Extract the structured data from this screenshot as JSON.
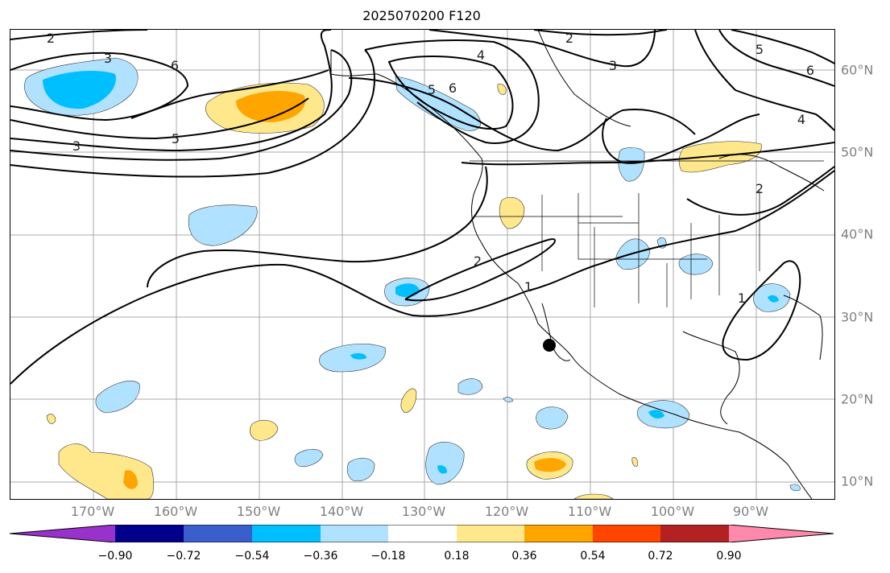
{
  "title": "2025070200 F120",
  "lon_labels": [
    "170°W",
    "160°W",
    "150°W",
    "140°W",
    "130°W",
    "120°W",
    "110°W",
    "100°W",
    "90°W"
  ],
  "lat_labels": [
    "60°N",
    "50°N",
    "40°N",
    "30°N",
    "20°N",
    "10°N"
  ],
  "colorbar": {
    "colors": [
      "#9932cc",
      "#00008b",
      "#3a5fcd",
      "#00bfff",
      "#b0e2ff",
      "#ffffff",
      "#ffe88c",
      "#ffa500",
      "#ff4500",
      "#b22222",
      "#ff89ac"
    ],
    "tick_labels": [
      "−0.90",
      "−0.72",
      "−0.54",
      "−0.36",
      "−0.18",
      "0.18",
      "0.36",
      "0.54",
      "0.72",
      "0.90"
    ],
    "extend": "both"
  },
  "contour_labels": [
    {
      "text": "2"
    },
    {
      "text": "3"
    },
    {
      "text": "6"
    },
    {
      "text": "3"
    },
    {
      "text": "5"
    },
    {
      "text": "4"
    },
    {
      "text": "2"
    },
    {
      "text": "3"
    },
    {
      "text": "5"
    },
    {
      "text": "6"
    },
    {
      "text": "5"
    },
    {
      "text": "6"
    },
    {
      "text": "4"
    },
    {
      "text": "2"
    },
    {
      "text": "2"
    },
    {
      "text": "1"
    },
    {
      "text": "1"
    }
  ],
  "marker": {
    "name": "storm-center-dot",
    "color": "#000000"
  }
}
